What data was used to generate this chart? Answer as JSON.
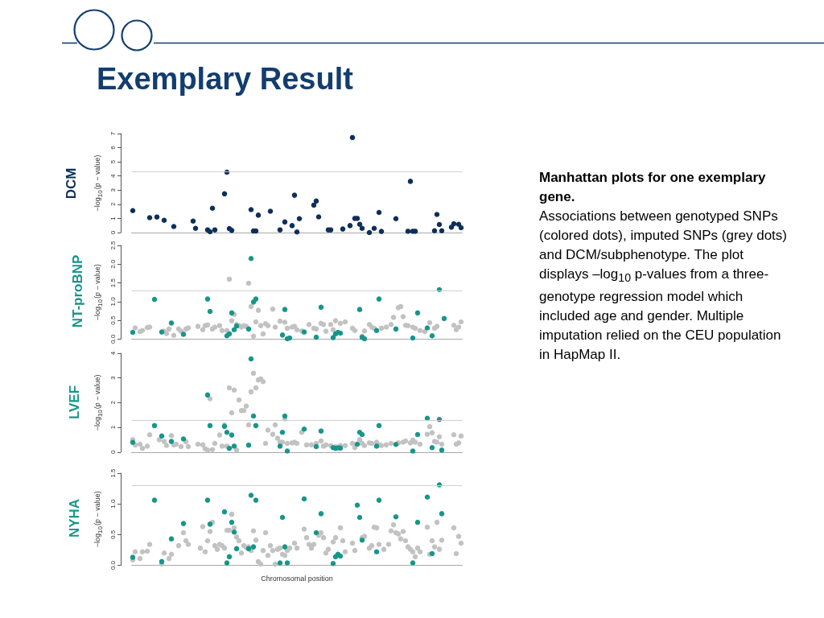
{
  "chart_data": [
    {
      "type": "other",
      "title": "Exemplary Result",
      "subtitle": "Manhattan plots for one exemplary gene.",
      "annotations": [
        "Associations between genotyped SNPs (colored dots), imputed SNPs (grey dots) and DCM/subphenotype. The plot displays –log$_{10}$ p-values from a three-genotype regression model which included age and gender. Multiple imputation relied on the CEU population in HapMap II."
      ]
    },
    {
      "type": "scatter",
      "title": "DCM",
      "ylabel": "−log$_{10}$(p − value)",
      "marker": "circle",
      "tick_labels": "y",
      "ylim": [
        0,
        7
      ],
      "yticks": [
        0,
        1,
        2,
        3,
        4,
        5,
        6,
        7
      ],
      "ref_lines": [
        {
          "axis": "y",
          "value": 4.3,
          "color": "#d0d0d0"
        }
      ],
      "categories": [
        null,
        null,
        null,
        null,
        null,
        null,
        null,
        null,
        null,
        null,
        null,
        null,
        null,
        null,
        null,
        null,
        null,
        null,
        null,
        null,
        null,
        null,
        null,
        null,
        null,
        null,
        null,
        null,
        null,
        null,
        null,
        null,
        null,
        null,
        null,
        null,
        null,
        null,
        null,
        null,
        null,
        null,
        null,
        null,
        null,
        null,
        null,
        null,
        null,
        null,
        null,
        null,
        null,
        null,
        null,
        null,
        null,
        null,
        null,
        null,
        null,
        null,
        null,
        null,
        null,
        null,
        null,
        null,
        null,
        null,
        null,
        null,
        null,
        null,
        null,
        null,
        null,
        null,
        null,
        null,
        null,
        null,
        null,
        null,
        null,
        null,
        null,
        null,
        null,
        null,
        null,
        null,
        null,
        null,
        null,
        null,
        null,
        null,
        null,
        null,
        null,
        null,
        null,
        null,
        null,
        null,
        null,
        null,
        null,
        null,
        null,
        null,
        null,
        null,
        null,
        null,
        null,
        null,
        null,
        null,
        null,
        null,
        null,
        null,
        null,
        null,
        null,
        null,
        null,
        null,
        null,
        null,
        null,
        null,
        null,
        null,
        null
      ],
      "series": [
        {
          "color": "#0e2f5a",
          "values": [
            1.55,
            null,
            null,
            null,
            null,
            null,
            null,
            1.05,
            null,
            null,
            1.1,
            null,
            null,
            0.87,
            null,
            null,
            null,
            0.43,
            null,
            null,
            null,
            null,
            null,
            null,
            null,
            0.81,
            0.3,
            null,
            null,
            null,
            null,
            0.19,
            0.06,
            1.72,
            0.19,
            null,
            null,
            null,
            2.74,
            4.27,
            0.28,
            0.15,
            null,
            null,
            null,
            null,
            null,
            null,
            null,
            1.62,
            0.11,
            0.11,
            1.23,
            null,
            null,
            null,
            null,
            1.51,
            null,
            null,
            null,
            0.19,
            null,
            0.75,
            null,
            null,
            0.49,
            2.64,
            0.04,
            0.98,
            null,
            null,
            null,
            null,
            null,
            1.94,
            2.23,
            1.11,
            null,
            null,
            null,
            0.19,
            0.19,
            null,
            null,
            null,
            null,
            0.25,
            null,
            null,
            0.49,
            6.72,
            1.0,
            1.0,
            0.58,
            0.3,
            null,
            null,
            0.0,
            null,
            0.3,
            null,
            1.42,
            0.08,
            null,
            null,
            null,
            null,
            null,
            0.98,
            null,
            null,
            null,
            null,
            0.09,
            3.62,
            0.09,
            0.09,
            null,
            null,
            null,
            null,
            null,
            null,
            null,
            0.13,
            1.28,
            0.57,
            0.13,
            null,
            null,
            null,
            0.38,
            0.62,
            null,
            0.58,
            0.34
          ]
        }
      ]
    },
    {
      "type": "scatter",
      "title": "NT-proBNP",
      "ylabel": "−log$_{10}$(p − value)",
      "marker": "circle",
      "tick_labels": "y",
      "ylim": [
        0,
        2.5
      ],
      "yticks": [
        {
          "value": 0,
          "label": "0.0"
        },
        0.5,
        {
          "value": 1,
          "label": "1.0"
        },
        1.5,
        {
          "value": 2,
          "label": "2.0"
        },
        2.5
      ],
      "ref_lines": [
        {
          "axis": "y",
          "value": 1.3,
          "color": "#d0d0d0"
        }
      ],
      "categories": [
        null,
        null,
        null,
        null,
        null,
        null,
        null,
        null,
        null,
        null,
        null,
        null,
        null,
        null,
        null,
        null,
        null,
        null,
        null,
        null,
        null,
        null,
        null,
        null,
        null,
        null,
        null,
        null,
        null,
        null,
        null,
        null,
        null,
        null,
        null,
        null,
        null,
        null,
        null,
        null,
        null,
        null,
        null,
        null,
        null,
        null,
        null,
        null,
        null,
        null,
        null,
        null,
        null,
        null,
        null,
        null,
        null,
        null,
        null,
        null,
        null,
        null,
        null,
        null,
        null,
        null,
        null,
        null,
        null,
        null,
        null,
        null,
        null,
        null,
        null,
        null,
        null,
        null,
        null,
        null,
        null,
        null,
        null,
        null,
        null,
        null,
        null,
        null,
        null,
        null,
        null,
        null,
        null,
        null,
        null,
        null,
        null,
        null,
        null,
        null,
        null,
        null,
        null,
        null,
        null,
        null,
        null,
        null,
        null,
        null,
        null,
        null,
        null,
        null,
        null,
        null,
        null,
        null,
        null,
        null,
        null,
        null,
        null,
        null,
        null,
        null,
        null,
        null,
        null,
        null,
        null,
        null,
        null,
        null,
        null,
        null,
        null
      ],
      "series": [
        {
          "color": "#c2c2c2",
          "values": [
            null,
            0.3,
            null,
            0.2,
            0.23,
            null,
            0.31,
            0.32,
            null,
            null,
            null,
            null,
            null,
            0.21,
            0.15,
            0.27,
            null,
            0.1,
            null,
            0.27,
            0.21,
            null,
            0.27,
            0.3,
            null,
            null,
            null,
            0.34,
            null,
            0.25,
            0.36,
            0.38,
            null,
            0.27,
            0.32,
            null,
            0.36,
            0.23,
            null,
            0.23,
            1.6,
            0.49,
            0.66,
            0.39,
            0.36,
            0.32,
            0.36,
            0.34,
            1.49,
            0.87,
            0.08,
            0.46,
            0.77,
            0.36,
            0.14,
            0.41,
            0.36,
            null,
            0.8,
            0.32,
            null,
            0.48,
            null,
            0.45,
            0.29,
            null,
            0.32,
            0.34,
            0.25,
            null,
            0.22,
            null,
            null,
            0.39,
            null,
            0.29,
            0.27,
            null,
            0.42,
            0.39,
            0.21,
            null,
            0.39,
            0.25,
            0.49,
            null,
            0.42,
            null,
            0.46,
            null,
            null,
            0.29,
            0.23,
            null,
            null,
            0.08,
            0.22,
            null,
            0.39,
            0.32,
            0.29,
            null,
            null,
            0.29,
            null,
            0.32,
            null,
            0.39,
            0.58,
            null,
            0.84,
            0.87,
            0.6,
            0.37,
            0.36,
            null,
            0.32,
            0.29,
            null,
            0.23,
            null,
            0.2,
            null,
            0.44,
            null,
            0.29,
            0.34,
            null,
            null,
            null,
            null,
            null,
            null,
            0.37,
            0.25,
            0.32,
            0.46
          ]
        },
        {
          "color": "#17968a",
          "values": [
            0.18,
            null,
            null,
            null,
            null,
            null,
            null,
            null,
            null,
            1.06,
            null,
            null,
            0.19,
            null,
            null,
            null,
            0.43,
            null,
            null,
            null,
            null,
            0.13,
            null,
            null,
            null,
            null,
            null,
            null,
            null,
            null,
            null,
            1.07,
            0.74,
            null,
            null,
            null,
            null,
            null,
            null,
            0.09,
            0.14,
            0.7,
            0.25,
            0.35,
            null,
            null,
            null,
            null,
            0.27,
            2.15,
            0.99,
            1.07,
            null,
            null,
            null,
            null,
            null,
            null,
            null,
            null,
            null,
            null,
            0.11,
            0.79,
            0.01,
            0.03,
            null,
            null,
            null,
            null,
            null,
            0.19,
            null,
            null,
            null,
            null,
            0.05,
            null,
            0.85,
            null,
            null,
            null,
            null,
            0.04,
            0.14,
            0.18,
            0.16,
            null,
            null,
            null,
            null,
            null,
            null,
            null,
            0.79,
            0.05,
            0.01,
            null,
            null,
            null,
            null,
            0.23,
            1.07,
            null,
            null,
            null,
            null,
            null,
            null,
            0.27,
            null,
            null,
            null,
            null,
            null,
            null,
            0.03,
            null,
            0.7,
            null,
            null,
            null,
            0.3,
            null,
            0.09,
            null,
            null,
            1.32,
            null,
            0.55,
            null,
            null,
            null,
            null,
            null,
            null,
            null
          ]
        }
      ]
    },
    {
      "type": "scatter",
      "title": "LVEF",
      "ylabel": "−log$_{10}$(p − value)",
      "marker": "circle",
      "tick_labels": "y",
      "ylim": [
        0,
        4
      ],
      "yticks": [
        0,
        1,
        2,
        3,
        4
      ],
      "ref_lines": [
        {
          "axis": "y",
          "value": 1.3,
          "color": "#d0d0d0"
        }
      ],
      "categories": [
        null,
        null,
        null,
        null,
        null,
        null,
        null,
        null,
        null,
        null,
        null,
        null,
        null,
        null,
        null,
        null,
        null,
        null,
        null,
        null,
        null,
        null,
        null,
        null,
        null,
        null,
        null,
        null,
        null,
        null,
        null,
        null,
        null,
        null,
        null,
        null,
        null,
        null,
        null,
        null,
        null,
        null,
        null,
        null,
        null,
        null,
        null,
        null,
        null,
        null,
        null,
        null,
        null,
        null,
        null,
        null,
        null,
        null,
        null,
        null,
        null,
        null,
        null,
        null,
        null,
        null,
        null,
        null,
        null,
        null,
        null,
        null,
        null,
        null,
        null,
        null,
        null,
        null,
        null,
        null,
        null,
        null,
        null,
        null,
        null,
        null,
        null,
        null,
        null,
        null,
        null,
        null,
        null,
        null,
        null,
        null,
        null,
        null,
        null,
        null,
        null,
        null,
        null,
        null,
        null,
        null,
        null,
        null,
        null,
        null,
        null,
        null,
        null,
        null,
        null,
        null,
        null,
        null,
        null,
        null,
        null,
        null,
        null,
        null,
        null,
        null,
        null,
        null,
        null,
        null,
        null,
        null,
        null,
        null,
        null,
        null,
        null
      ],
      "series": [
        {
          "color": "#c2c2c2",
          "values": [
            0.5,
            0.29,
            null,
            0.32,
            0.15,
            null,
            0.24,
            0.7,
            null,
            null,
            null,
            0.5,
            null,
            0.43,
            0.27,
            null,
            0.67,
            0.29,
            0.32,
            null,
            0.22,
            null,
            0.42,
            0.22,
            null,
            null,
            null,
            0.32,
            null,
            0.29,
            0.13,
            0.08,
            2.16,
            0.1,
            0.35,
            null,
            0.69,
            0.24,
            1.1,
            0.24,
            2.6,
            1.59,
            2.51,
            0.08,
            2.11,
            1.68,
            1.68,
            1.86,
            1.1,
            2.44,
            3.19,
            2.6,
            2.92,
            2.96,
            2.85,
            0.35,
            0.89,
            null,
            0.72,
            1.1,
            0.56,
            0.4,
            0.4,
            1.34,
            0.35,
            null,
            0.37,
            0.4,
            0.35,
            null,
            0.8,
            null,
            0.29,
            null,
            0.29,
            null,
            0.35,
            null,
            0.45,
            0.24,
            0.29,
            null,
            0.26,
            null,
            0.22,
            null,
            0.26,
            null,
            0.26,
            null,
            null,
            0.35,
            0.18,
            null,
            0.5,
            0.35,
            0.26,
            null,
            0.37,
            0.35,
            null,
            0.4,
            0.29,
            0.26,
            null,
            0.29,
            null,
            0.35,
            null,
            null,
            0.37,
            null,
            0.4,
            0.45,
            null,
            0.37,
            0.48,
            0.4,
            null,
            0.32,
            null,
            null,
            0.72,
            1.03,
            0.78,
            0.43,
            0.4,
            0.62,
            0.32,
            null,
            null,
            null,
            null,
            0.7,
            0.32,
            0.37,
            0.65
          ]
        },
        {
          "color": "#17968a",
          "values": [
            0.39,
            null,
            null,
            null,
            null,
            null,
            null,
            null,
            null,
            1.07,
            null,
            null,
            0.65,
            null,
            null,
            null,
            0.43,
            null,
            null,
            null,
            null,
            0.53,
            null,
            null,
            null,
            null,
            null,
            null,
            null,
            null,
            null,
            2.31,
            1.07,
            null,
            null,
            null,
            null,
            null,
            1.04,
            0.8,
            0.15,
            0.69,
            0.24,
            null,
            null,
            null,
            null,
            null,
            0.28,
            3.77,
            1.46,
            1.07,
            null,
            null,
            null,
            null,
            null,
            null,
            null,
            null,
            null,
            0.24,
            0.8,
            1.46,
            0.04,
            null,
            null,
            null,
            null,
            null,
            null,
            0.93,
            null,
            null,
            null,
            null,
            0.22,
            null,
            0.85,
            null,
            null,
            null,
            null,
            0.18,
            0.15,
            0.17,
            0.16,
            null,
            null,
            null,
            null,
            null,
            null,
            0.32,
            0.8,
            0.71,
            null,
            null,
            null,
            null,
            null,
            0.24,
            1.07,
            null,
            null,
            null,
            null,
            null,
            null,
            0.31,
            null,
            null,
            null,
            null,
            null,
            null,
            0.04,
            null,
            0.71,
            null,
            null,
            null,
            1.37,
            null,
            0.18,
            null,
            null,
            1.32,
            0.08,
            null,
            null,
            null,
            null,
            null,
            null,
            null,
            null
          ]
        }
      ]
    },
    {
      "type": "scatter",
      "title": "NYHA",
      "ylabel": "−log$_{10}$(p − value)",
      "xlabel": "Chromosomal position",
      "marker": "circle",
      "tick_labels": "y",
      "ylim": [
        0,
        1.5
      ],
      "yticks": [
        {
          "value": 0,
          "label": "0.0"
        },
        0.5,
        {
          "value": 1,
          "label": "1.0"
        },
        1.5
      ],
      "ref_lines": [
        {
          "axis": "y",
          "value": 1.3,
          "color": "#d0d0d0"
        }
      ],
      "categories": [
        null,
        null,
        null,
        null,
        null,
        null,
        null,
        null,
        null,
        null,
        null,
        null,
        null,
        null,
        null,
        null,
        null,
        null,
        null,
        null,
        null,
        null,
        null,
        null,
        null,
        null,
        null,
        null,
        null,
        null,
        null,
        null,
        null,
        null,
        null,
        null,
        null,
        null,
        null,
        null,
        null,
        null,
        null,
        null,
        null,
        null,
        null,
        null,
        null,
        null,
        null,
        null,
        null,
        null,
        null,
        null,
        null,
        null,
        null,
        null,
        null,
        null,
        null,
        null,
        null,
        null,
        null,
        null,
        null,
        null,
        null,
        null,
        null,
        null,
        null,
        null,
        null,
        null,
        null,
        null,
        null,
        null,
        null,
        null,
        null,
        null,
        null,
        null,
        null,
        null,
        null,
        null,
        null,
        null,
        null,
        null,
        null,
        null,
        null,
        null,
        null,
        null,
        null,
        null,
        null,
        null,
        null,
        null,
        null,
        null,
        null,
        null,
        null,
        null,
        null,
        null,
        null,
        null,
        null,
        null,
        null,
        null,
        null,
        null,
        null,
        null,
        null,
        null,
        null,
        null,
        null,
        null,
        null,
        null,
        null,
        null,
        null
      ],
      "series": [
        {
          "color": "#c2c2c2",
          "values": [
            0.09,
            0.22,
            null,
            0.11,
            0.22,
            null,
            0.23,
            0.34,
            null,
            null,
            null,
            null,
            0.02,
            0.2,
            null,
            0.11,
            0.18,
            null,
            null,
            0.32,
            null,
            0.53,
            0.4,
            0.34,
            null,
            null,
            null,
            null,
            0.28,
            0.63,
            0.22,
            0.4,
            0.55,
            0.7,
            0.32,
            0.26,
            0.34,
            0.32,
            0.28,
            0.57,
            0.57,
            0.83,
            0.61,
            0.46,
            0.4,
            0.2,
            0.32,
            0.29,
            0.3,
            0.24,
            0.56,
            0.41,
            0.06,
            0.02,
            0.24,
            0.53,
            0.16,
            0.32,
            0.24,
            0.02,
            0.26,
            0.28,
            0.18,
            0.16,
            0.24,
            0.28,
            null,
            0.36,
            0.28,
            null,
            null,
            0.59,
            0.45,
            0.34,
            0.28,
            0.34,
            null,
            0.49,
            0.53,
            0.45,
            0.2,
            0.26,
            null,
            0.38,
            0.45,
            null,
            0.61,
            0.4,
            0.22,
            null,
            null,
            0.36,
            0.24,
            null,
            null,
            0.45,
            0.47,
            null,
            0.28,
            0.32,
            0.62,
            0.61,
            0.34,
            null,
            0.26,
            null,
            0.34,
            0.56,
            0.66,
            0.53,
            0.51,
            0.43,
            0.55,
            0.4,
            0.3,
            0.26,
            0.22,
            0.14,
            0.28,
            0.22,
            null,
            null,
            0.62,
            0.18,
            0.4,
            0.3,
            0.7,
            0.26,
            0.41,
            null,
            null,
            null,
            null,
            0.61,
            0.19,
            0.47,
            0.36
          ]
        },
        {
          "color": "#17968a",
          "values": [
            0.13,
            null,
            null,
            null,
            null,
            null,
            null,
            null,
            null,
            1.06,
            null,
            null,
            0.06,
            null,
            null,
            null,
            0.43,
            null,
            null,
            null,
            null,
            0.68,
            null,
            null,
            null,
            null,
            null,
            null,
            null,
            null,
            null,
            1.06,
            0.67,
            null,
            null,
            null,
            null,
            null,
            0.87,
            0.04,
            0.14,
            0.7,
            0.54,
            0.27,
            null,
            null,
            null,
            null,
            0.27,
            1.14,
            0.3,
            1.06,
            null,
            null,
            null,
            null,
            null,
            null,
            null,
            null,
            null,
            0.04,
            0.78,
            0.3,
            0.04,
            null,
            null,
            null,
            null,
            null,
            null,
            1.08,
            null,
            null,
            null,
            null,
            0.53,
            null,
            0.84,
            null,
            null,
            null,
            null,
            0.03,
            0.14,
            0.18,
            0.15,
            null,
            null,
            null,
            null,
            null,
            null,
            0.98,
            0.78,
            0.41,
            null,
            null,
            null,
            null,
            null,
            0.22,
            1.06,
            null,
            null,
            null,
            null,
            null,
            null,
            0.79,
            null,
            null,
            null,
            null,
            null,
            null,
            0.04,
            null,
            0.7,
            null,
            null,
            null,
            1.11,
            null,
            0.19,
            null,
            null,
            1.31,
            0.84,
            null,
            null,
            null,
            null,
            null,
            null,
            null,
            null
          ]
        }
      ]
    }
  ]
}
